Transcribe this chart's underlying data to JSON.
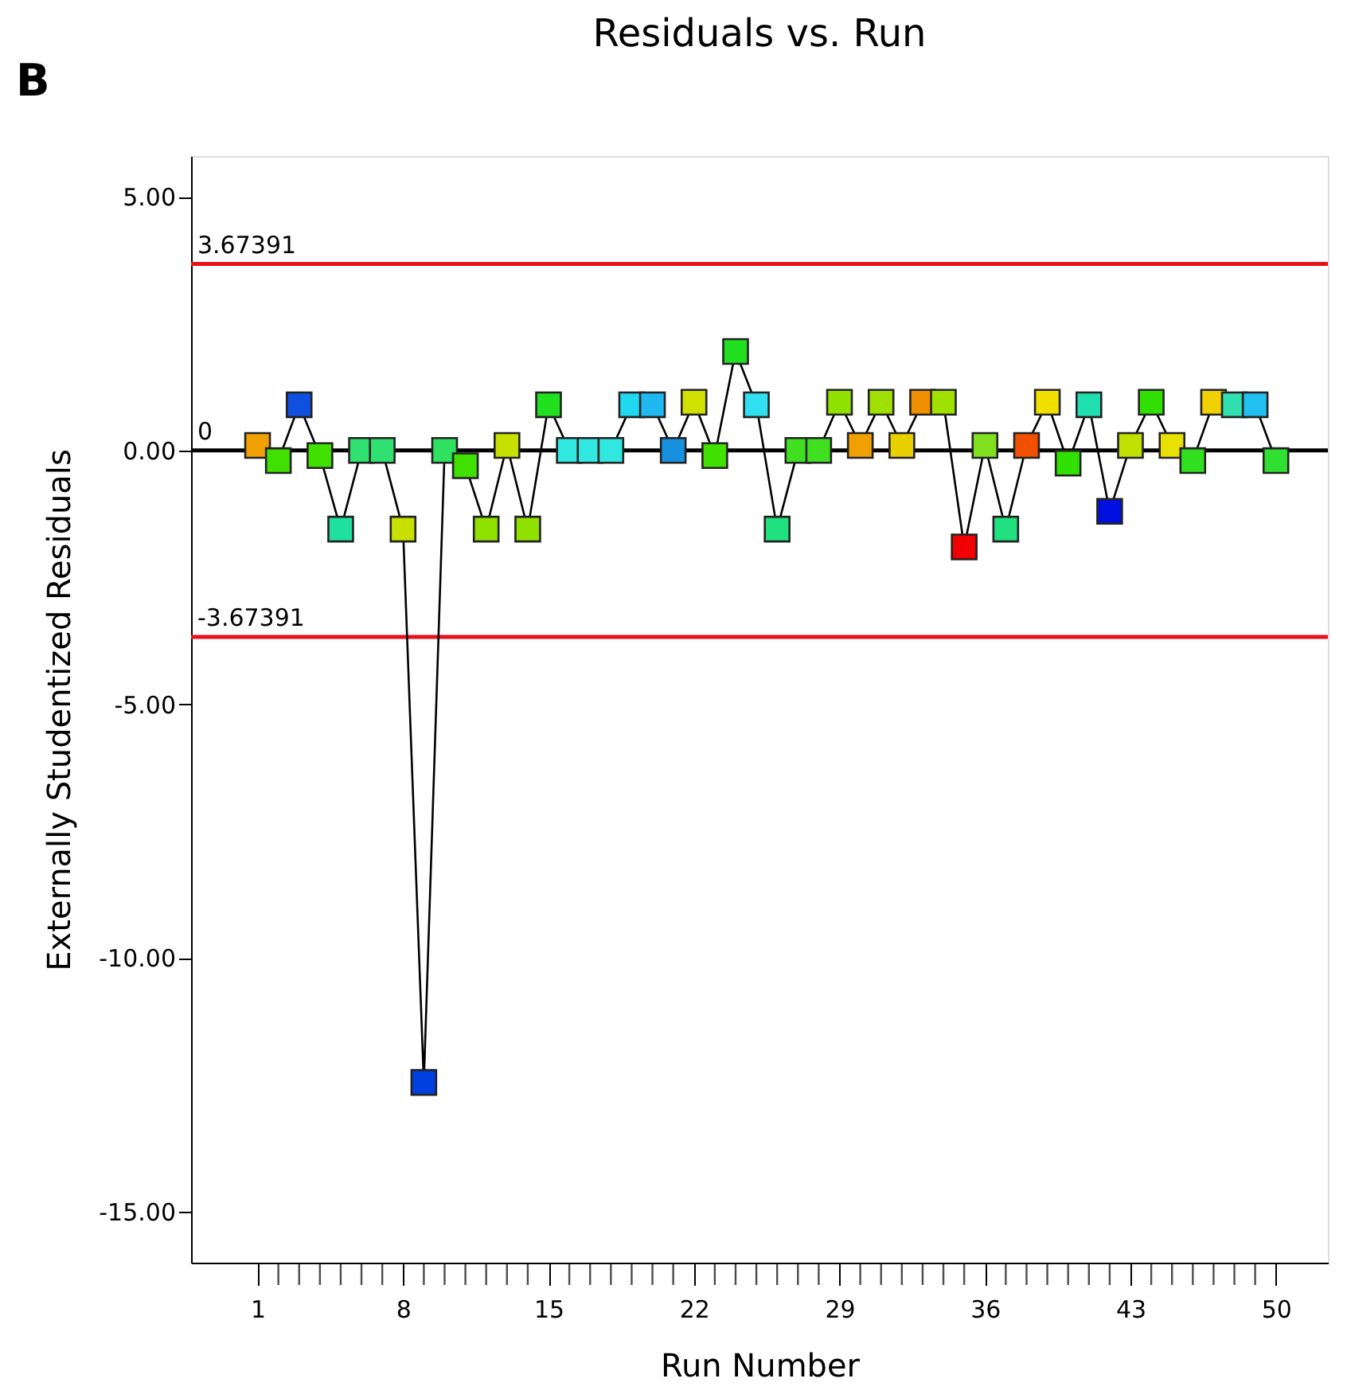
{
  "chart_data": {
    "type": "line",
    "title": "Residuals vs. Run",
    "xlabel": "Run Number",
    "ylabel": "Externally Studentized Residuals",
    "annotations": [
      "B"
    ],
    "x": [
      1,
      2,
      3,
      4,
      5,
      6,
      7,
      8,
      9,
      10,
      11,
      12,
      13,
      14,
      15,
      16,
      17,
      18,
      19,
      20,
      21,
      22,
      23,
      24,
      25,
      26,
      27,
      28,
      29,
      30,
      31,
      32,
      33,
      34,
      35,
      36,
      37,
      38,
      39,
      40,
      41,
      42,
      43,
      44,
      45,
      46,
      47,
      48,
      49,
      50
    ],
    "series": [
      {
        "color": "#000000",
        "values": [
          0.1,
          -0.2,
          0.9,
          -0.1,
          -1.55,
          0,
          0,
          -1.55,
          -12.45,
          0,
          -0.3,
          -1.55,
          0.1,
          -1.55,
          0.9,
          0,
          0,
          0,
          0.9,
          0.9,
          0,
          0.95,
          -0.1,
          1.95,
          0.9,
          -1.55,
          0,
          0,
          0.95,
          0.1,
          0.95,
          0.1,
          0.95,
          0.95,
          -1.9,
          0.1,
          -1.55,
          0.1,
          0.95,
          -0.25,
          0.9,
          -1.2,
          0.1,
          0.95,
          0.1,
          -0.2,
          0.95,
          0.9,
          0.9,
          -0.2
        ],
        "colors": [
          "#f0a000",
          "#40e000",
          "#1050e0",
          "#40e000",
          "#20e0a0",
          "#30e070",
          "#30e070",
          "#c8e000",
          "#0040e0",
          "#30e060",
          "#40e000",
          "#90e000",
          "#c8e000",
          "#90e000",
          "#20e020",
          "#30e8e0",
          "#30e8e0",
          "#30e8e0",
          "#20d8f0",
          "#20b8f0",
          "#1890e0",
          "#d0e000",
          "#40e000",
          "#20e020",
          "#30e0f0",
          "#20e080",
          "#40e020",
          "#40e020",
          "#90e000",
          "#f0a000",
          "#a0e000",
          "#e8d000",
          "#f09000",
          "#a0e000",
          "#f00000",
          "#80e020",
          "#20e080",
          "#f05000",
          "#f0e000",
          "#30e000",
          "#20e0b0",
          "#0010e0",
          "#c0e000",
          "#30e000",
          "#e8e000",
          "#30e020",
          "#f0d000",
          "#30e0b0",
          "#20c0f0",
          "#30e030"
        ]
      }
    ],
    "marker": "square",
    "line_style": "solid",
    "grid": false,
    "xlim": [
      -2.2,
      52.5
    ],
    "xticks": [
      1,
      {
        "value": 2,
        "label": null
      },
      {
        "value": 3,
        "label": null
      },
      {
        "value": 4,
        "label": null
      },
      {
        "value": 5,
        "label": null
      },
      {
        "value": 6,
        "label": null
      },
      {
        "value": 7,
        "label": null
      },
      8,
      {
        "value": 9,
        "label": null
      },
      {
        "value": 10,
        "label": null
      },
      {
        "value": 11,
        "label": null
      },
      {
        "value": 12,
        "label": null
      },
      {
        "value": 13,
        "label": null
      },
      {
        "value": 14,
        "label": null
      },
      15,
      {
        "value": 16,
        "label": null
      },
      {
        "value": 17,
        "label": null
      },
      {
        "value": 18,
        "label": null
      },
      {
        "value": 19,
        "label": null
      },
      {
        "value": 20,
        "label": null
      },
      {
        "value": 21,
        "label": null
      },
      22,
      {
        "value": 23,
        "label": null
      },
      {
        "value": 24,
        "label": null
      },
      {
        "value": 25,
        "label": null
      },
      {
        "value": 26,
        "label": null
      },
      {
        "value": 27,
        "label": null
      },
      {
        "value": 28,
        "label": null
      },
      29,
      {
        "value": 30,
        "label": null
      },
      {
        "value": 31,
        "label": null
      },
      {
        "value": 32,
        "label": null
      },
      {
        "value": 33,
        "label": null
      },
      {
        "value": 34,
        "label": null
      },
      {
        "value": 35,
        "label": null
      },
      36,
      {
        "value": 37,
        "label": null
      },
      {
        "value": 38,
        "label": null
      },
      {
        "value": 39,
        "label": null
      },
      {
        "value": 40,
        "label": null
      },
      {
        "value": 41,
        "label": null
      },
      {
        "value": 42,
        "label": null
      },
      43,
      {
        "value": 44,
        "label": null
      },
      {
        "value": 45,
        "label": null
      },
      {
        "value": 46,
        "label": null
      },
      {
        "value": 47,
        "label": null
      },
      {
        "value": 48,
        "label": null
      },
      {
        "value": 49,
        "label": null
      },
      50
    ],
    "ylim": [
      -16,
      5.8
    ],
    "yticks": [
      {
        "value": 5,
        "label": "5.00"
      },
      {
        "value": 0,
        "label": "0.00"
      },
      {
        "value": -5,
        "label": "-5.00"
      },
      {
        "value": -10,
        "label": "-10.00"
      },
      {
        "value": -15,
        "label": "-15.00"
      }
    ],
    "ref_lines": [
      {
        "axis": "y",
        "value": 3.67391,
        "label": "3.67391",
        "color": "#e8101a"
      },
      {
        "axis": "y",
        "value": 0,
        "label": "0",
        "color": "#000000"
      },
      {
        "axis": "y",
        "value": -3.67391,
        "label": "-3.67391",
        "color": "#e8101a"
      }
    ]
  }
}
